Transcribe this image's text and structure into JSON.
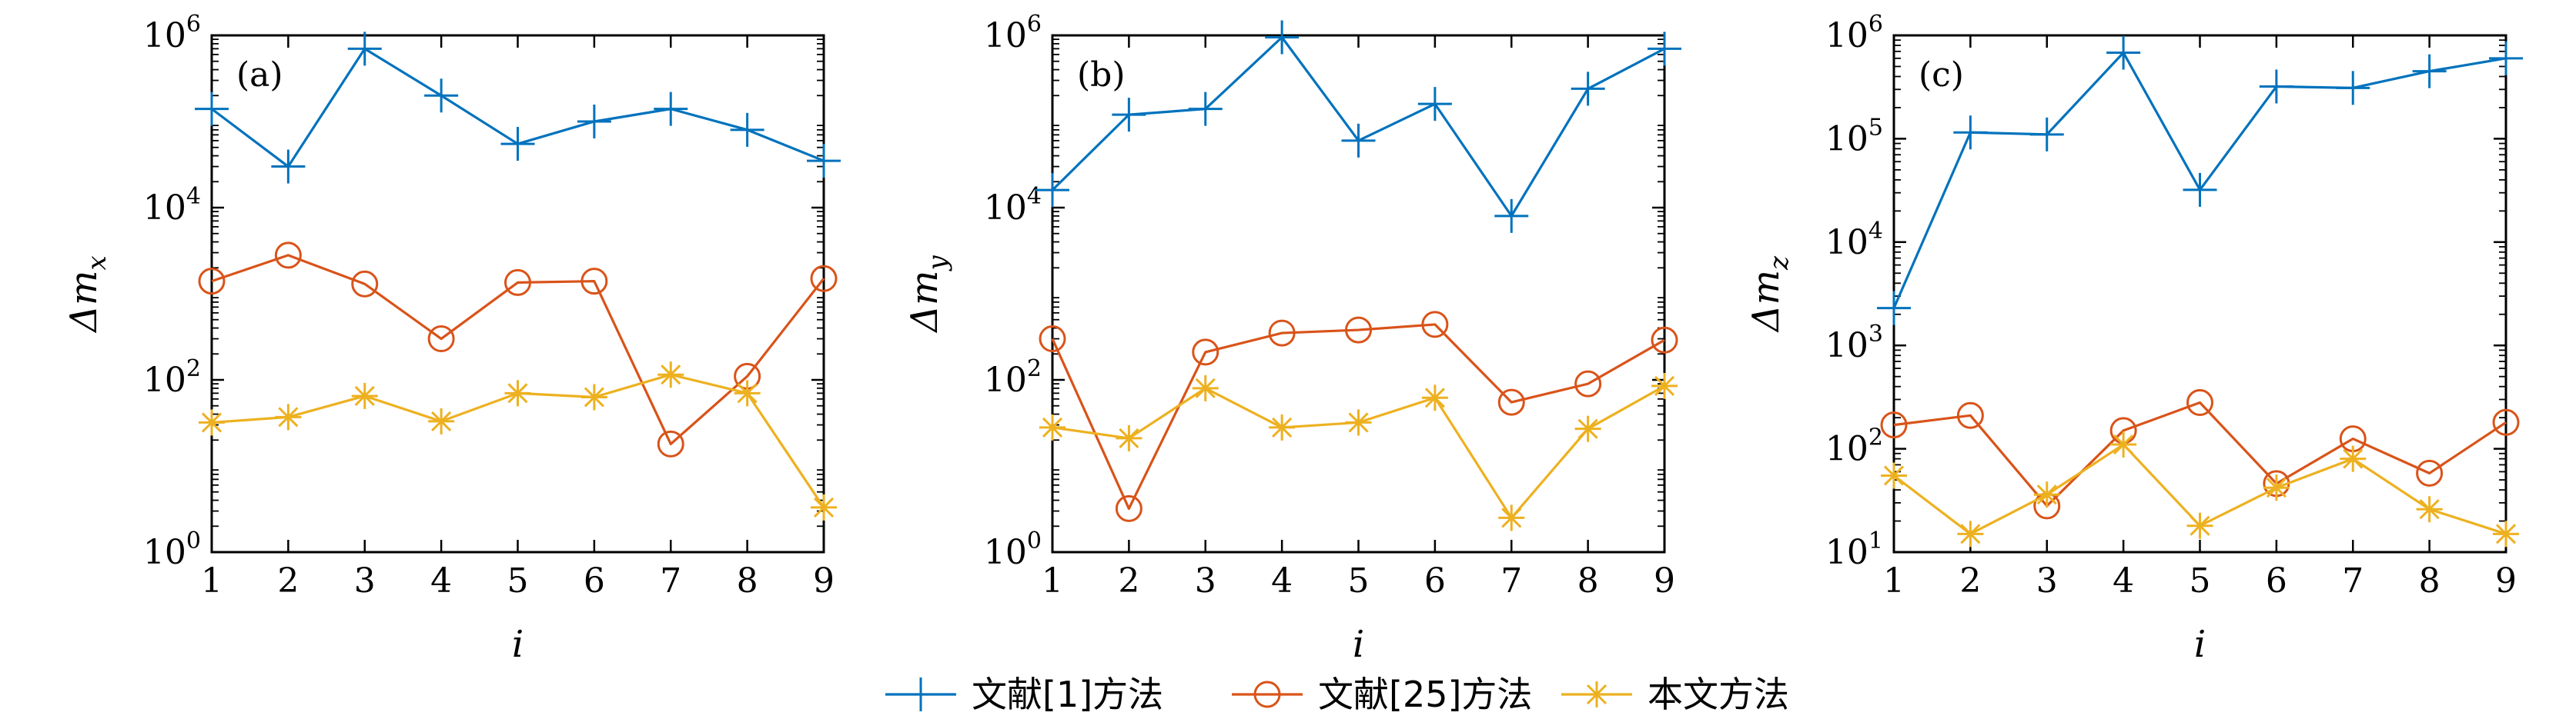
{
  "legend": {
    "items": [
      {
        "label": "文献[1]方法",
        "color": "#0072BD",
        "marker": "plus"
      },
      {
        "label": "文献[25]方法",
        "color": "#D95319",
        "marker": "circle"
      },
      {
        "label": "本文方法",
        "color": "#EDB120",
        "marker": "star"
      }
    ]
  },
  "chart_data": [
    {
      "type": "line",
      "panel_label": "(a)",
      "xlabel": "i",
      "ylabel_prefix": "Δm",
      "ylabel_sub": "x",
      "yscale": "log",
      "ylim": [
        1,
        1000000
      ],
      "yticks": [
        {
          "value": 1,
          "base": "10",
          "exp": "0"
        },
        {
          "value": 100,
          "base": "10",
          "exp": "2"
        },
        {
          "value": 10000,
          "base": "10",
          "exp": "4"
        },
        {
          "value": 1000000,
          "base": "10",
          "exp": "6"
        }
      ],
      "x": [
        1,
        2,
        3,
        4,
        5,
        6,
        7,
        8,
        9
      ],
      "xtick_labels": [
        "1",
        "2",
        "3",
        "4",
        "5",
        "6",
        "7",
        "8",
        "9"
      ],
      "series": [
        {
          "name": "文献[1]方法",
          "values": [
            140000,
            30000,
            700000,
            200000,
            55000,
            100000,
            140000,
            80000,
            35000
          ]
        },
        {
          "name": "文献[25]方法",
          "values": [
            1400,
            2800,
            1300,
            300,
            1350,
            1400,
            18,
            110,
            1500
          ]
        },
        {
          "name": "本文方法",
          "values": [
            32,
            37,
            65,
            33,
            70,
            63,
            115,
            70,
            3.3
          ]
        }
      ]
    },
    {
      "type": "line",
      "panel_label": "(b)",
      "xlabel": "i",
      "ylabel_prefix": "Δm",
      "ylabel_sub": "y",
      "yscale": "log",
      "ylim": [
        1,
        1000000
      ],
      "yticks": [
        {
          "value": 1,
          "base": "10",
          "exp": "0"
        },
        {
          "value": 100,
          "base": "10",
          "exp": "2"
        },
        {
          "value": 10000,
          "base": "10",
          "exp": "4"
        },
        {
          "value": 1000000,
          "base": "10",
          "exp": "6"
        }
      ],
      "x": [
        1,
        2,
        3,
        4,
        5,
        6,
        7,
        8,
        9
      ],
      "xtick_labels": [
        "1",
        "2",
        "3",
        "4",
        "5",
        "6",
        "7",
        "8",
        "9"
      ],
      "series": [
        {
          "name": "文献[1]方法",
          "values": [
            16000,
            120000,
            140000,
            950000,
            60000,
            160000,
            8000,
            240000,
            700000
          ]
        },
        {
          "name": "文献[25]方法",
          "values": [
            300,
            3.2,
            210,
            350,
            380,
            440,
            55,
            90,
            290
          ]
        },
        {
          "name": "本文方法",
          "values": [
            28,
            21,
            80,
            28,
            32,
            62,
            2.5,
            27,
            85
          ]
        }
      ]
    },
    {
      "type": "line",
      "panel_label": "(c)",
      "xlabel": "i",
      "ylabel_prefix": "Δm",
      "ylabel_sub": "z",
      "yscale": "log",
      "ylim": [
        10,
        1000000
      ],
      "yticks": [
        {
          "value": 10,
          "base": "10",
          "exp": "1"
        },
        {
          "value": 100,
          "base": "10",
          "exp": "2"
        },
        {
          "value": 1000,
          "base": "10",
          "exp": "3"
        },
        {
          "value": 10000,
          "base": "10",
          "exp": "4"
        },
        {
          "value": 100000,
          "base": "10",
          "exp": "5"
        },
        {
          "value": 1000000,
          "base": "10",
          "exp": "6"
        }
      ],
      "x": [
        1,
        2,
        3,
        4,
        5,
        6,
        7,
        8,
        9
      ],
      "xtick_labels": [
        "1",
        "2",
        "3",
        "4",
        "5",
        "6",
        "7",
        "8",
        "9"
      ],
      "series": [
        {
          "name": "文献[1]方法",
          "values": [
            2300,
            115000,
            110000,
            680000,
            32000,
            320000,
            310000,
            450000,
            600000
          ]
        },
        {
          "name": "文献[25]方法",
          "values": [
            170,
            210,
            28,
            150,
            280,
            46,
            125,
            58,
            180
          ]
        },
        {
          "name": "本文方法",
          "values": [
            55,
            15,
            36,
            110,
            18,
            42,
            80,
            26,
            15
          ]
        }
      ]
    }
  ]
}
